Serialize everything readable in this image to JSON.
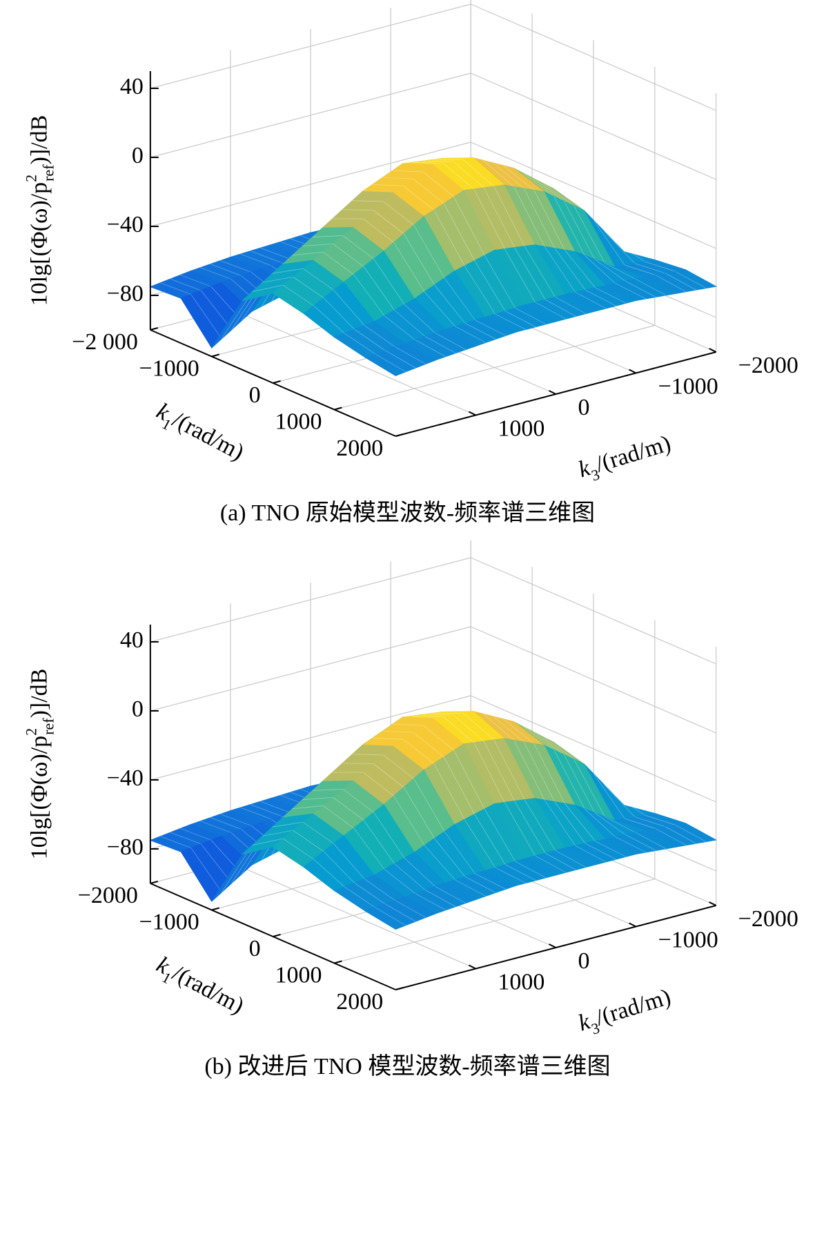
{
  "chart_data": [
    {
      "type": "surface",
      "zlabel": {
        "prefix": "10lg[(Φ(ω)/p",
        "sup": "2",
        "sub": "ref",
        "suffix": ")]/dB"
      },
      "xlabel": {
        "symbol": "k",
        "sub": "1",
        "unit": "/(rad/m)"
      },
      "ylabel": {
        "symbol": "k",
        "sub": "3",
        "unit": "/(rad/m)"
      },
      "caption": "(a) TNO 原始模型波数-频率谱三维图",
      "x": [
        -2000,
        -1500,
        -1000,
        -500,
        0,
        500,
        1000,
        1500,
        2000
      ],
      "y": [
        -2000,
        -1500,
        -1000,
        -500,
        0,
        500,
        1000,
        1500,
        2000
      ],
      "z": [
        [
          -75,
          -72,
          -70,
          -69,
          -68,
          -69,
          -70,
          -72,
          -75
        ],
        [
          -74,
          -71,
          -69,
          -68,
          -67,
          -68,
          -69,
          -71,
          -74
        ],
        [
          -78,
          -75,
          -73,
          -72,
          -71,
          -72,
          -74,
          -80,
          -95
        ],
        [
          -72,
          -40,
          -20,
          -8,
          -5,
          -15,
          -30,
          -45,
          -60
        ],
        [
          -68,
          -30,
          -12,
          0,
          2,
          -8,
          -22,
          -35,
          -48
        ],
        [
          -65,
          -35,
          -18,
          -8,
          -5,
          -14,
          -28,
          -40,
          -52
        ],
        [
          -62,
          -60,
          -45,
          -35,
          -32,
          -38,
          -48,
          -55,
          -58
        ],
        [
          -60,
          -58,
          -57,
          -56,
          -56,
          -57,
          -58,
          -60,
          -62
        ],
        [
          -62,
          -60,
          -58,
          -58,
          -58,
          -58,
          -60,
          -62,
          -65
        ]
      ],
      "xlim": [
        -2000,
        2000
      ],
      "ylim": [
        -2000,
        2000
      ],
      "zlim": [
        -100,
        50
      ],
      "xticks": [
        {
          "value": -2000,
          "label": "−2 000"
        },
        {
          "value": -1000,
          "label": "−1000"
        },
        0,
        1000,
        2000
      ],
      "yticks": [
        {
          "value": -2000,
          "label": "−2000"
        },
        {
          "value": -1000,
          "label": "−1000"
        },
        0,
        1000
      ],
      "zticks": [
        {
          "value": -80,
          "label": "−80"
        },
        {
          "value": -40,
          "label": "−40"
        },
        0,
        40
      ],
      "grid": true,
      "colormap": "parula"
    },
    {
      "type": "surface",
      "zlabel": {
        "prefix": "10lg[(Φ(ω)/p",
        "sup": "2",
        "sub": "ref",
        "suffix": ")]/dB"
      },
      "xlabel": {
        "symbol": "k",
        "sub": "1",
        "unit": "/(rad/m)"
      },
      "ylabel": {
        "symbol": "k",
        "sub": "3",
        "unit": "/(rad/m)"
      },
      "caption": "(b) 改进后 TNO 模型波数-频率谱三维图",
      "x": [
        -2000,
        -1500,
        -1000,
        -500,
        0,
        500,
        1000,
        1500,
        2000
      ],
      "y": [
        -2000,
        -1500,
        -1000,
        -500,
        0,
        500,
        1000,
        1500,
        2000
      ],
      "z": [
        [
          -75,
          -72,
          -70,
          -69,
          -68,
          -69,
          -70,
          -72,
          -75
        ],
        [
          -74,
          -71,
          -69,
          -68,
          -67,
          -68,
          -69,
          -71,
          -74
        ],
        [
          -78,
          -75,
          -73,
          -72,
          -71,
          -72,
          -74,
          -80,
          -95
        ],
        [
          -72,
          -40,
          -20,
          -8,
          -5,
          -15,
          -30,
          -45,
          -60
        ],
        [
          -68,
          -30,
          -12,
          0,
          2,
          -8,
          -22,
          -35,
          -48
        ],
        [
          -65,
          -35,
          -18,
          -8,
          -5,
          -14,
          -28,
          -40,
          -52
        ],
        [
          -62,
          -60,
          -45,
          -35,
          -32,
          -38,
          -48,
          -55,
          -58
        ],
        [
          -60,
          -58,
          -57,
          -56,
          -56,
          -57,
          -58,
          -60,
          -62
        ],
        [
          -62,
          -60,
          -58,
          -58,
          -58,
          -58,
          -60,
          -62,
          -65
        ]
      ],
      "xlim": [
        -2000,
        2000
      ],
      "ylim": [
        -2000,
        2000
      ],
      "zlim": [
        -100,
        50
      ],
      "xticks": [
        {
          "value": -2000,
          "label": "−2000"
        },
        {
          "value": -1000,
          "label": "−1000"
        },
        0,
        1000,
        2000
      ],
      "yticks": [
        {
          "value": -2000,
          "label": "−2000"
        },
        {
          "value": -1000,
          "label": "−1000"
        },
        0,
        1000
      ],
      "zticks": [
        {
          "value": -80,
          "label": "−80"
        },
        {
          "value": -40,
          "label": "−40"
        },
        0,
        40
      ],
      "grid": true,
      "colormap": "parula"
    }
  ]
}
